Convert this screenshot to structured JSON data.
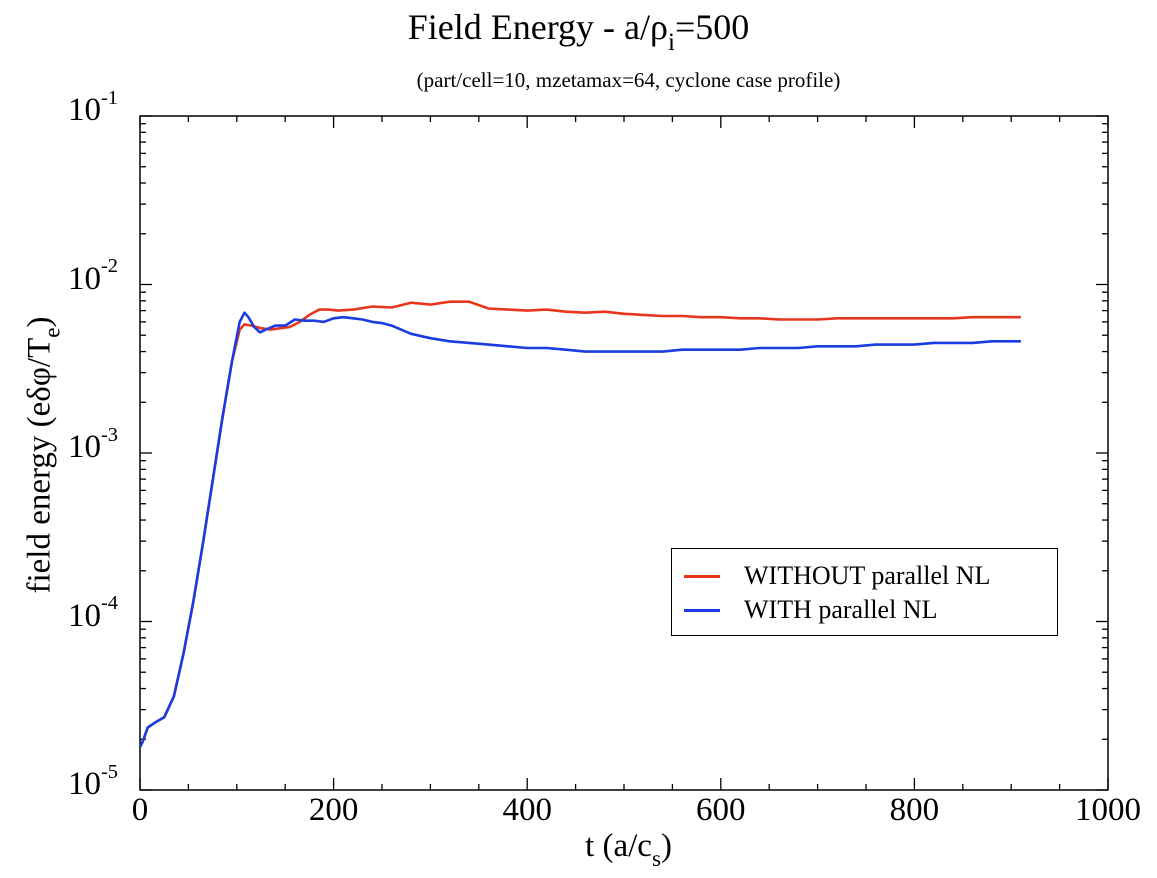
{
  "chart_data": {
    "type": "line",
    "title_main": "Field Energy - a/ρ",
    "title_sub": "i",
    "title_tail": "=500",
    "subtitle": "(part/cell=10, mzetamax=64, cyclone case profile)",
    "xlabel_main": "t (a/c",
    "xlabel_sub": "s",
    "xlabel_tail": ")",
    "ylabel_main": "field energy (eδφ/T",
    "ylabel_sub": "e",
    "ylabel_tail": ")",
    "xlim": [
      0,
      1000
    ],
    "ylim": [
      1e-05,
      0.1
    ],
    "yscale": "log",
    "grid": false,
    "legend_position": "lower-right",
    "x_ticks": [
      "0",
      "200",
      "400",
      "600",
      "800",
      "1000"
    ],
    "y_ticks": [
      {
        "base": "10",
        "exp": "-5"
      },
      {
        "base": "10",
        "exp": "-4"
      },
      {
        "base": "10",
        "exp": "-3"
      },
      {
        "base": "10",
        "exp": "-2"
      },
      {
        "base": "10",
        "exp": "-1"
      }
    ],
    "series": [
      {
        "name": "WITHOUT parallel NL",
        "color": "#e8361c",
        "x": [
          0,
          3,
          8,
          15,
          25,
          35,
          45,
          55,
          65,
          75,
          85,
          95,
          103,
          108,
          115,
          125,
          135,
          145,
          155,
          165,
          175,
          185,
          195,
          205,
          220,
          240,
          260,
          280,
          300,
          320,
          340,
          360,
          380,
          400,
          420,
          440,
          460,
          480,
          500,
          520,
          540,
          560,
          580,
          600,
          620,
          640,
          660,
          680,
          700,
          720,
          740,
          760,
          780,
          800,
          820,
          840,
          860,
          880,
          910
        ],
        "y": [
          1.8e-05,
          1.95e-05,
          2.35e-05,
          2.5e-05,
          2.7e-05,
          3.6e-05,
          6.5e-05,
          0.00013,
          0.00029,
          0.00068,
          0.0016,
          0.0035,
          0.0054,
          0.0058,
          0.0057,
          0.0055,
          0.0054,
          0.0055,
          0.0056,
          0.006,
          0.0066,
          0.0071,
          0.0071,
          0.007,
          0.0071,
          0.0074,
          0.0073,
          0.0078,
          0.0076,
          0.0079,
          0.0079,
          0.0072,
          0.0071,
          0.007,
          0.0071,
          0.0069,
          0.0068,
          0.0069,
          0.0067,
          0.0066,
          0.0065,
          0.0065,
          0.0064,
          0.0064,
          0.0063,
          0.0063,
          0.0062,
          0.0062,
          0.0062,
          0.0063,
          0.0063,
          0.0063,
          0.0063,
          0.0063,
          0.0063,
          0.0063,
          0.0064,
          0.0064,
          0.0064
        ]
      },
      {
        "name": "WITH parallel NL",
        "color": "#1a3ce0",
        "x": [
          0,
          3,
          8,
          15,
          25,
          35,
          45,
          55,
          65,
          75,
          85,
          95,
          103,
          108,
          112,
          118,
          124,
          130,
          140,
          150,
          160,
          170,
          180,
          190,
          200,
          210,
          220,
          230,
          240,
          250,
          260,
          280,
          300,
          320,
          340,
          360,
          380,
          400,
          420,
          440,
          460,
          480,
          500,
          520,
          540,
          560,
          580,
          600,
          620,
          640,
          660,
          680,
          700,
          720,
          740,
          760,
          780,
          800,
          820,
          840,
          860,
          880,
          910
        ],
        "y": [
          1.8e-05,
          1.95e-05,
          2.35e-05,
          2.5e-05,
          2.7e-05,
          3.6e-05,
          6.5e-05,
          0.00013,
          0.00029,
          0.00068,
          0.0016,
          0.0035,
          0.006,
          0.0068,
          0.0064,
          0.0056,
          0.0052,
          0.0054,
          0.0057,
          0.0057,
          0.0062,
          0.0061,
          0.0061,
          0.006,
          0.0063,
          0.0064,
          0.0063,
          0.0062,
          0.006,
          0.0059,
          0.0057,
          0.0051,
          0.0048,
          0.0046,
          0.0045,
          0.0044,
          0.0043,
          0.0042,
          0.0042,
          0.0041,
          0.004,
          0.004,
          0.004,
          0.004,
          0.004,
          0.0041,
          0.0041,
          0.0041,
          0.0041,
          0.0042,
          0.0042,
          0.0042,
          0.0043,
          0.0043,
          0.0043,
          0.0044,
          0.0044,
          0.0044,
          0.0045,
          0.0045,
          0.0045,
          0.0046,
          0.0046
        ]
      }
    ]
  }
}
